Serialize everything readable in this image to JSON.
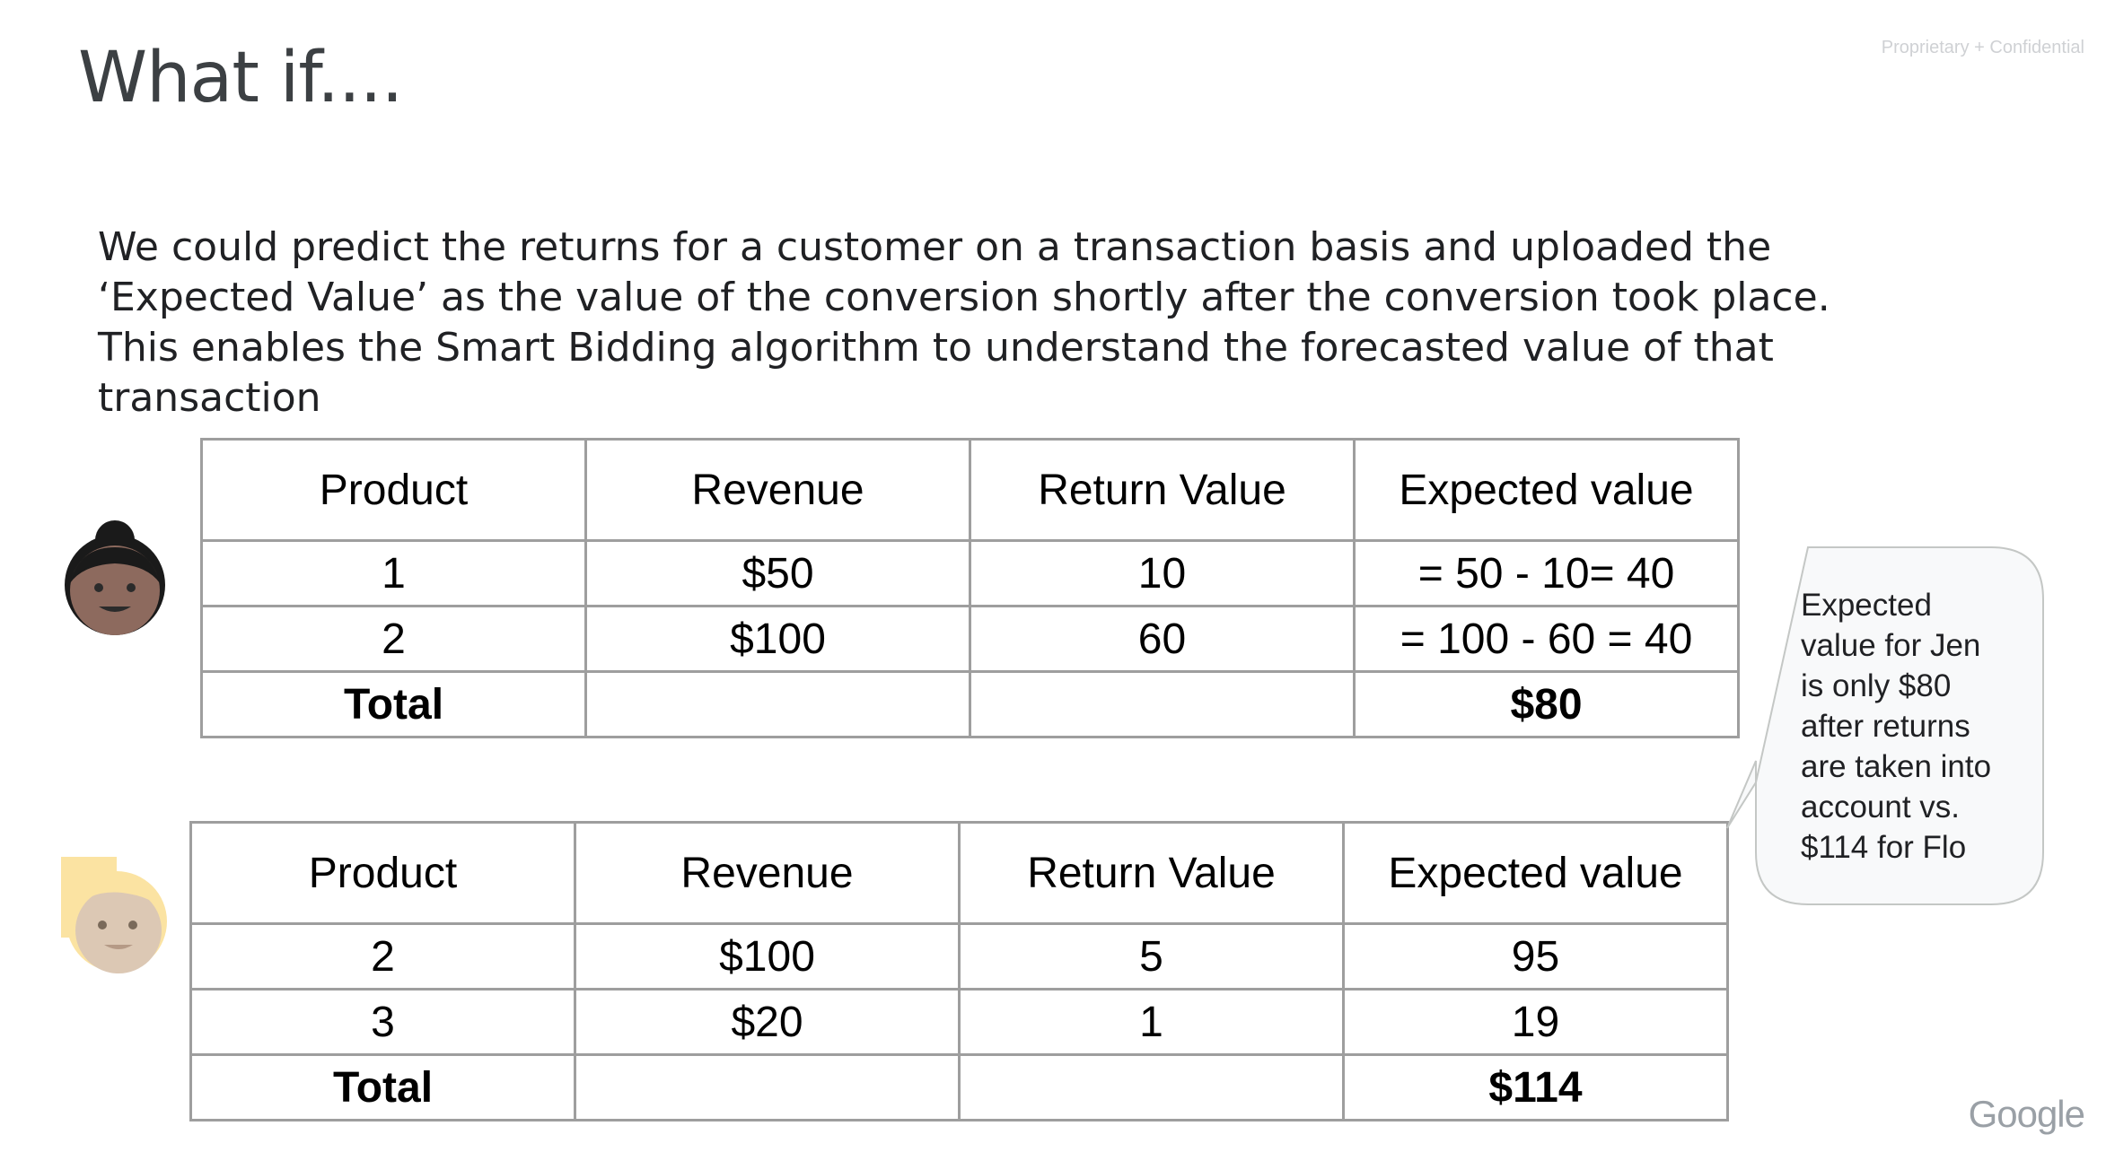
{
  "header": {
    "title": "What if....",
    "confidential_label": "Proprietary + Confidential"
  },
  "body_text": "We could predict the returns for a customer on a transaction basis and uploaded the ‘Expected Value’ as the value of the conversion shortly after the conversion took place. This enables the Smart Bidding algorithm to understand the forecasted value of that transaction",
  "tables": [
    {
      "headers": [
        "Product",
        "Revenue",
        "Return Value",
        "Expected value"
      ],
      "rows": [
        [
          "1",
          "$50",
          "10",
          "= 50 - 10= 40"
        ],
        [
          "2",
          "$100",
          "60",
          "= 100 - 60 = 40"
        ]
      ],
      "total": [
        "Total",
        "",
        "",
        "$80"
      ]
    },
    {
      "headers": [
        "Product",
        "Revenue",
        "Return Value",
        "Expected value"
      ],
      "rows": [
        [
          "2",
          "$100",
          "5",
          "95"
        ],
        [
          "3",
          "$20",
          "1",
          "19"
        ]
      ],
      "total": [
        "Total",
        "",
        "",
        "$114"
      ]
    }
  ],
  "callout": {
    "lines": [
      "Expected",
      "value for Jen",
      "is only $80",
      "after returns",
      "are taken into",
      "account vs.",
      "$114 for Flo"
    ]
  },
  "avatars": [
    {
      "icon": "dark-hair-bun-avatar-icon",
      "skin_color": "#8d6a5e",
      "hair_color": "#1a1a1a"
    },
    {
      "icon": "blonde-hair-avatar-icon",
      "skin_color": "#dcc8b4",
      "hair_color": "#fbe3a2"
    }
  ],
  "footer": {
    "logo_text": "Google"
  }
}
